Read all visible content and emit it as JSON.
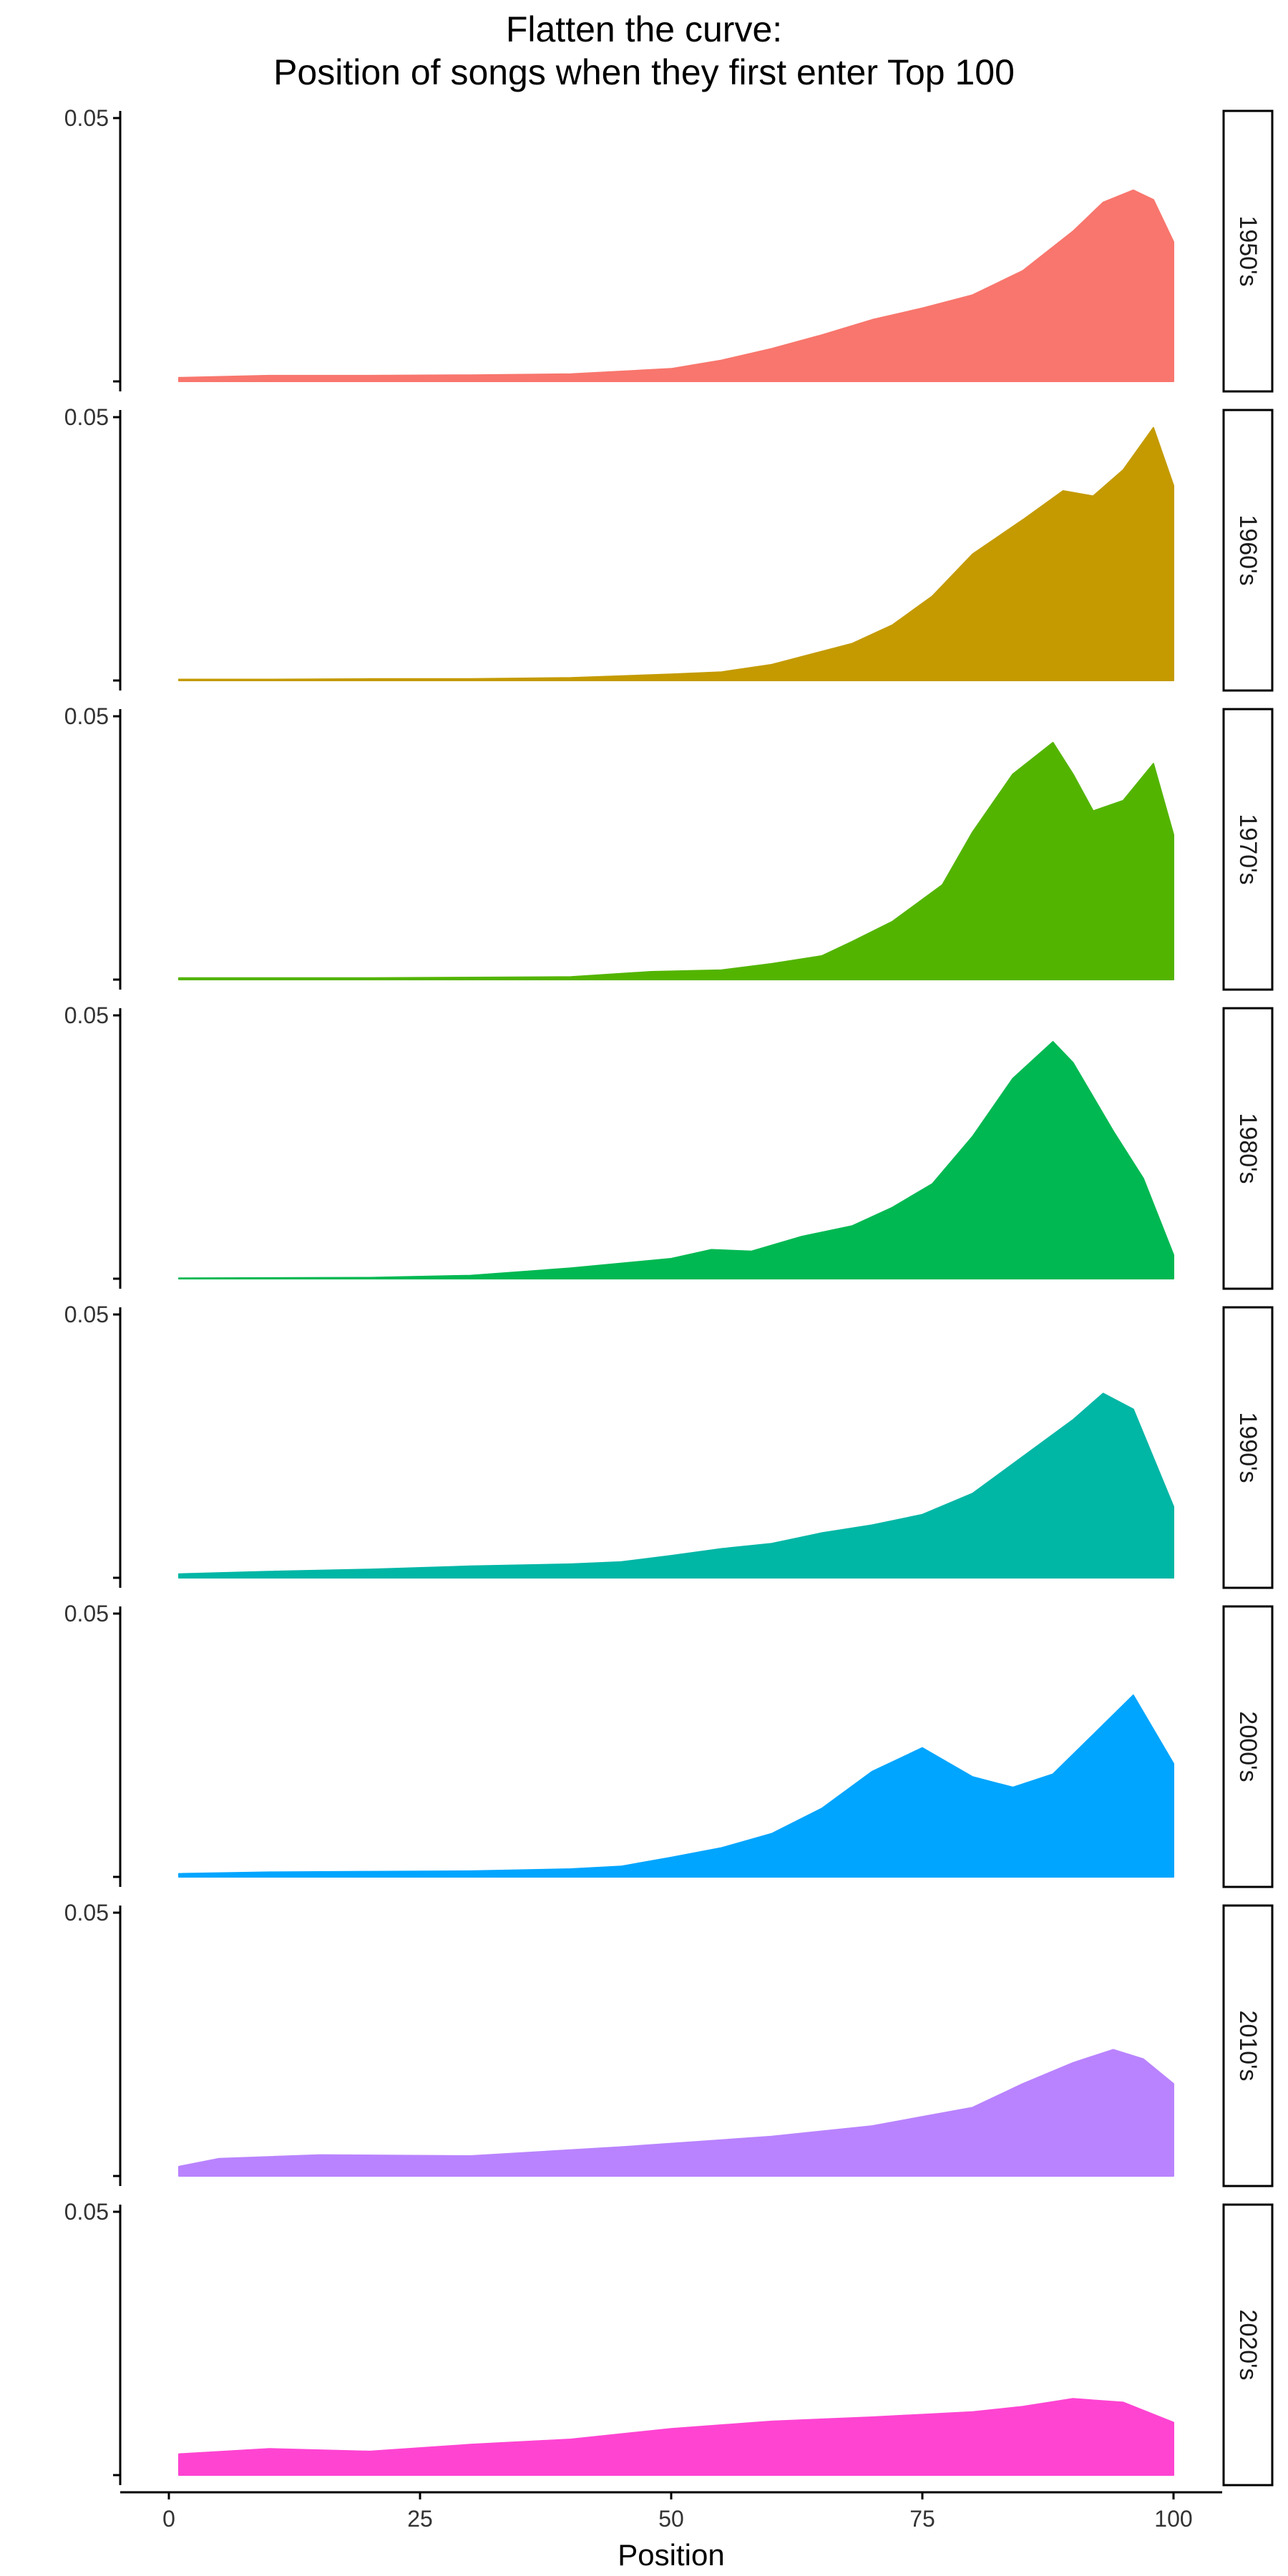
{
  "chart_data": {
    "type": "area",
    "title": [
      "Flatten the curve:",
      "Position of songs when they first enter Top 100"
    ],
    "xlabel": "Position",
    "ylabel": "",
    "xlim": [
      1,
      100
    ],
    "xticks": [
      0,
      25,
      50,
      75,
      100
    ],
    "ylim": [
      0,
      0.05
    ],
    "yticks": [
      0,
      0.05
    ],
    "ytick_labels": [
      "",
      "0.05"
    ],
    "grid": false,
    "legend": "none",
    "panels": [
      {
        "name": "1950's",
        "color": "#F8766D",
        "x": [
          1,
          10,
          20,
          30,
          40,
          50,
          55,
          60,
          65,
          70,
          75,
          80,
          85,
          90,
          93,
          96,
          98,
          100
        ],
        "y": [
          0.0007,
          0.0011,
          0.0011,
          0.0012,
          0.0014,
          0.0024,
          0.004,
          0.0062,
          0.0088,
          0.0117,
          0.0139,
          0.0164,
          0.021,
          0.0285,
          0.034,
          0.0363,
          0.0345,
          0.0265
        ]
      },
      {
        "name": "1960's",
        "color": "#C49A00",
        "x": [
          1,
          10,
          20,
          30,
          40,
          50,
          55,
          60,
          65,
          68,
          72,
          76,
          80,
          85,
          89,
          92,
          95,
          98,
          100
        ],
        "y": [
          0.0002,
          0.0002,
          0.0003,
          0.0003,
          0.0005,
          0.0012,
          0.0016,
          0.003,
          0.0055,
          0.007,
          0.0105,
          0.016,
          0.024,
          0.0305,
          0.036,
          0.035,
          0.04,
          0.048,
          0.037
        ]
      },
      {
        "name": "1970's",
        "color": "#53B400",
        "x": [
          1,
          20,
          40,
          48,
          55,
          60,
          65,
          68,
          72,
          77,
          80,
          84,
          88,
          90,
          92,
          95,
          98,
          100
        ],
        "y": [
          0.0003,
          0.0003,
          0.0005,
          0.0015,
          0.0018,
          0.003,
          0.0045,
          0.0072,
          0.011,
          0.018,
          0.028,
          0.039,
          0.045,
          0.039,
          0.032,
          0.034,
          0.041,
          0.0275
        ]
      },
      {
        "name": "1980's",
        "color": "#00B852",
        "x": [
          1,
          20,
          30,
          40,
          50,
          54,
          58,
          63,
          68,
          72,
          76,
          80,
          84,
          88,
          90,
          94,
          97,
          100
        ],
        "y": [
          0.0001,
          0.0002,
          0.0006,
          0.002,
          0.0038,
          0.0055,
          0.0052,
          0.008,
          0.01,
          0.0135,
          0.018,
          0.027,
          0.038,
          0.045,
          0.041,
          0.028,
          0.019,
          0.0045
        ]
      },
      {
        "name": "1990's",
        "color": "#00B6A5",
        "x": [
          1,
          10,
          20,
          30,
          40,
          45,
          50,
          55,
          60,
          65,
          70,
          75,
          80,
          85,
          90,
          93,
          96,
          100
        ],
        "y": [
          0.0007,
          0.0012,
          0.0016,
          0.0022,
          0.0026,
          0.003,
          0.0042,
          0.0055,
          0.0065,
          0.0085,
          0.01,
          0.012,
          0.016,
          0.023,
          0.03,
          0.035,
          0.032,
          0.0135
        ]
      },
      {
        "name": "2000's",
        "color": "#00A5FF",
        "x": [
          1,
          10,
          20,
          30,
          40,
          45,
          50,
          55,
          60,
          65,
          70,
          75,
          80,
          84,
          88,
          92,
          96,
          100
        ],
        "y": [
          0.0006,
          0.0009,
          0.001,
          0.0011,
          0.0015,
          0.002,
          0.0037,
          0.0055,
          0.0082,
          0.013,
          0.02,
          0.0245,
          0.019,
          0.017,
          0.0195,
          0.027,
          0.0345,
          0.0215
        ]
      },
      {
        "name": "2010's",
        "color": "#B983FF",
        "x": [
          1,
          5,
          15,
          30,
          45,
          60,
          70,
          80,
          85,
          90,
          94,
          97,
          100
        ],
        "y": [
          0.0018,
          0.0033,
          0.004,
          0.0038,
          0.0055,
          0.0075,
          0.0095,
          0.013,
          0.0175,
          0.0215,
          0.024,
          0.0222,
          0.0175
        ]
      },
      {
        "name": "2020's",
        "color": "#FF44D2",
        "x": [
          1,
          10,
          20,
          30,
          40,
          50,
          60,
          70,
          80,
          85,
          90,
          95,
          100
        ],
        "y": [
          0.004,
          0.005,
          0.0045,
          0.0058,
          0.0068,
          0.0088,
          0.0102,
          0.011,
          0.012,
          0.013,
          0.0145,
          0.0138,
          0.01
        ]
      }
    ]
  }
}
